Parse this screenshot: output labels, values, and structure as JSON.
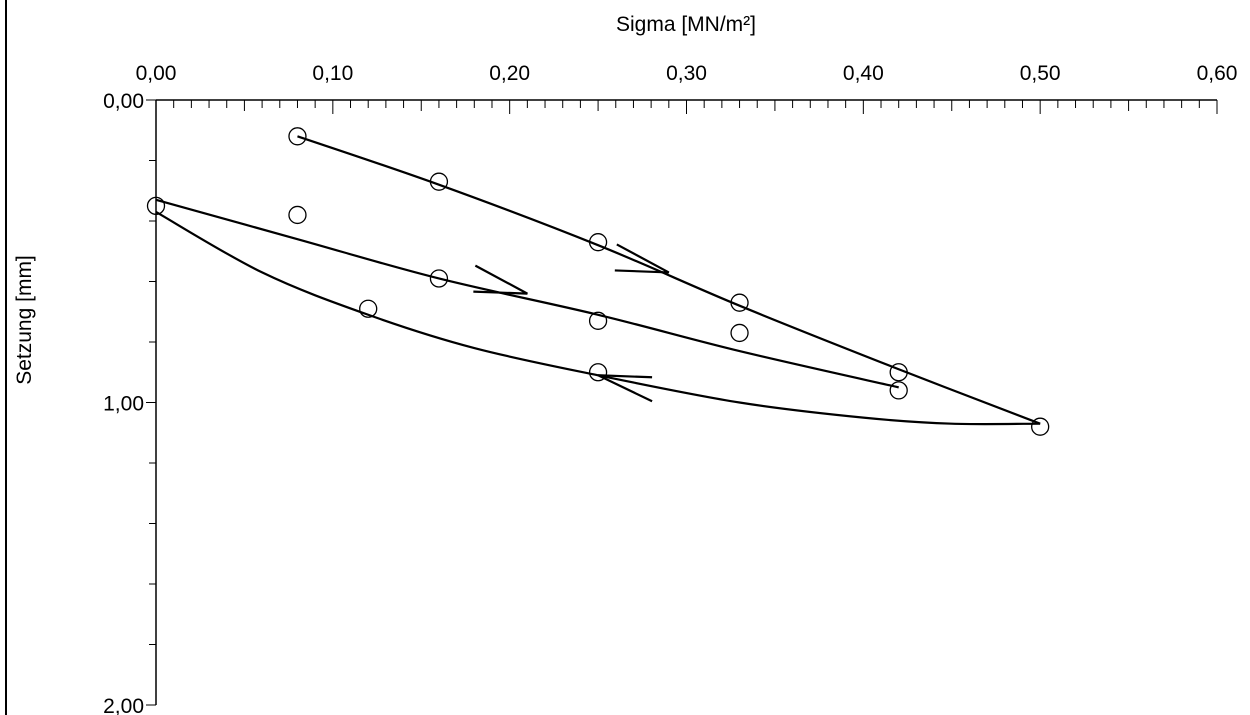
{
  "chart_data": {
    "type": "scatter",
    "title": "",
    "xlabel": "Sigma [MN/m²]",
    "ylabel": "Setzung [mm]",
    "xlim": [
      0,
      0.6
    ],
    "ylim": [
      0,
      2.0
    ],
    "y_inverted": true,
    "x_axis_position": "top",
    "x_ticks": [
      {
        "value": 0.0,
        "label": "0,00"
      },
      {
        "value": 0.1,
        "label": "0,10"
      },
      {
        "value": 0.2,
        "label": "0,20"
      },
      {
        "value": 0.3,
        "label": "0,30"
      },
      {
        "value": 0.4,
        "label": "0,40"
      },
      {
        "value": 0.5,
        "label": "0,50"
      },
      {
        "value": 0.6,
        "label": "0,60"
      }
    ],
    "y_ticks": [
      {
        "value": 0.0,
        "label": "0,00"
      },
      {
        "value": 1.0,
        "label": "1,00"
      },
      {
        "value": 2.0,
        "label": "2,00"
      }
    ],
    "x_minor_step": 0.01,
    "y_minor_step": 0.2,
    "grid": false,
    "legend": "none",
    "marker_color": "#000000",
    "line_color": "#000000",
    "points": [
      {
        "x": 0.08,
        "y": 0.12
      },
      {
        "x": 0.16,
        "y": 0.27
      },
      {
        "x": 0.25,
        "y": 0.47
      },
      {
        "x": 0.33,
        "y": 0.67
      },
      {
        "x": 0.42,
        "y": 0.9
      },
      {
        "x": 0.5,
        "y": 1.08
      },
      {
        "x": 0.42,
        "y": 0.96
      },
      {
        "x": 0.33,
        "y": 0.77
      },
      {
        "x": 0.25,
        "y": 0.73
      },
      {
        "x": 0.16,
        "y": 0.59
      },
      {
        "x": 0.08,
        "y": 0.38
      },
      {
        "x": 0.0,
        "y": 0.35
      },
      {
        "x": 0.12,
        "y": 0.69
      },
      {
        "x": 0.25,
        "y": 0.9
      }
    ],
    "series": [
      {
        "path": "loading-1",
        "x": [
          0.08,
          0.16,
          0.25,
          0.33,
          0.42,
          0.5
        ],
        "y": [
          0.12,
          0.28,
          0.48,
          0.68,
          0.89,
          1.07
        ]
      },
      {
        "path": "unloading",
        "x": [
          0.5,
          0.45,
          0.4,
          0.33,
          0.25,
          0.18,
          0.12,
          0.06,
          0.0
        ],
        "y": [
          1.07,
          1.07,
          1.05,
          1.0,
          0.91,
          0.82,
          0.71,
          0.57,
          0.37
        ]
      },
      {
        "path": "reloading",
        "x": [
          0.0,
          0.08,
          0.16,
          0.25,
          0.33,
          0.42
        ],
        "y": [
          0.33,
          0.46,
          0.59,
          0.71,
          0.83,
          0.95
        ]
      }
    ],
    "direction_arrows": [
      {
        "x": 0.29,
        "y": 0.57,
        "dir": "down-right"
      },
      {
        "x": 0.21,
        "y": 0.64,
        "dir": "down-right"
      },
      {
        "x": 0.25,
        "y": 0.91,
        "dir": "up-left"
      }
    ]
  }
}
